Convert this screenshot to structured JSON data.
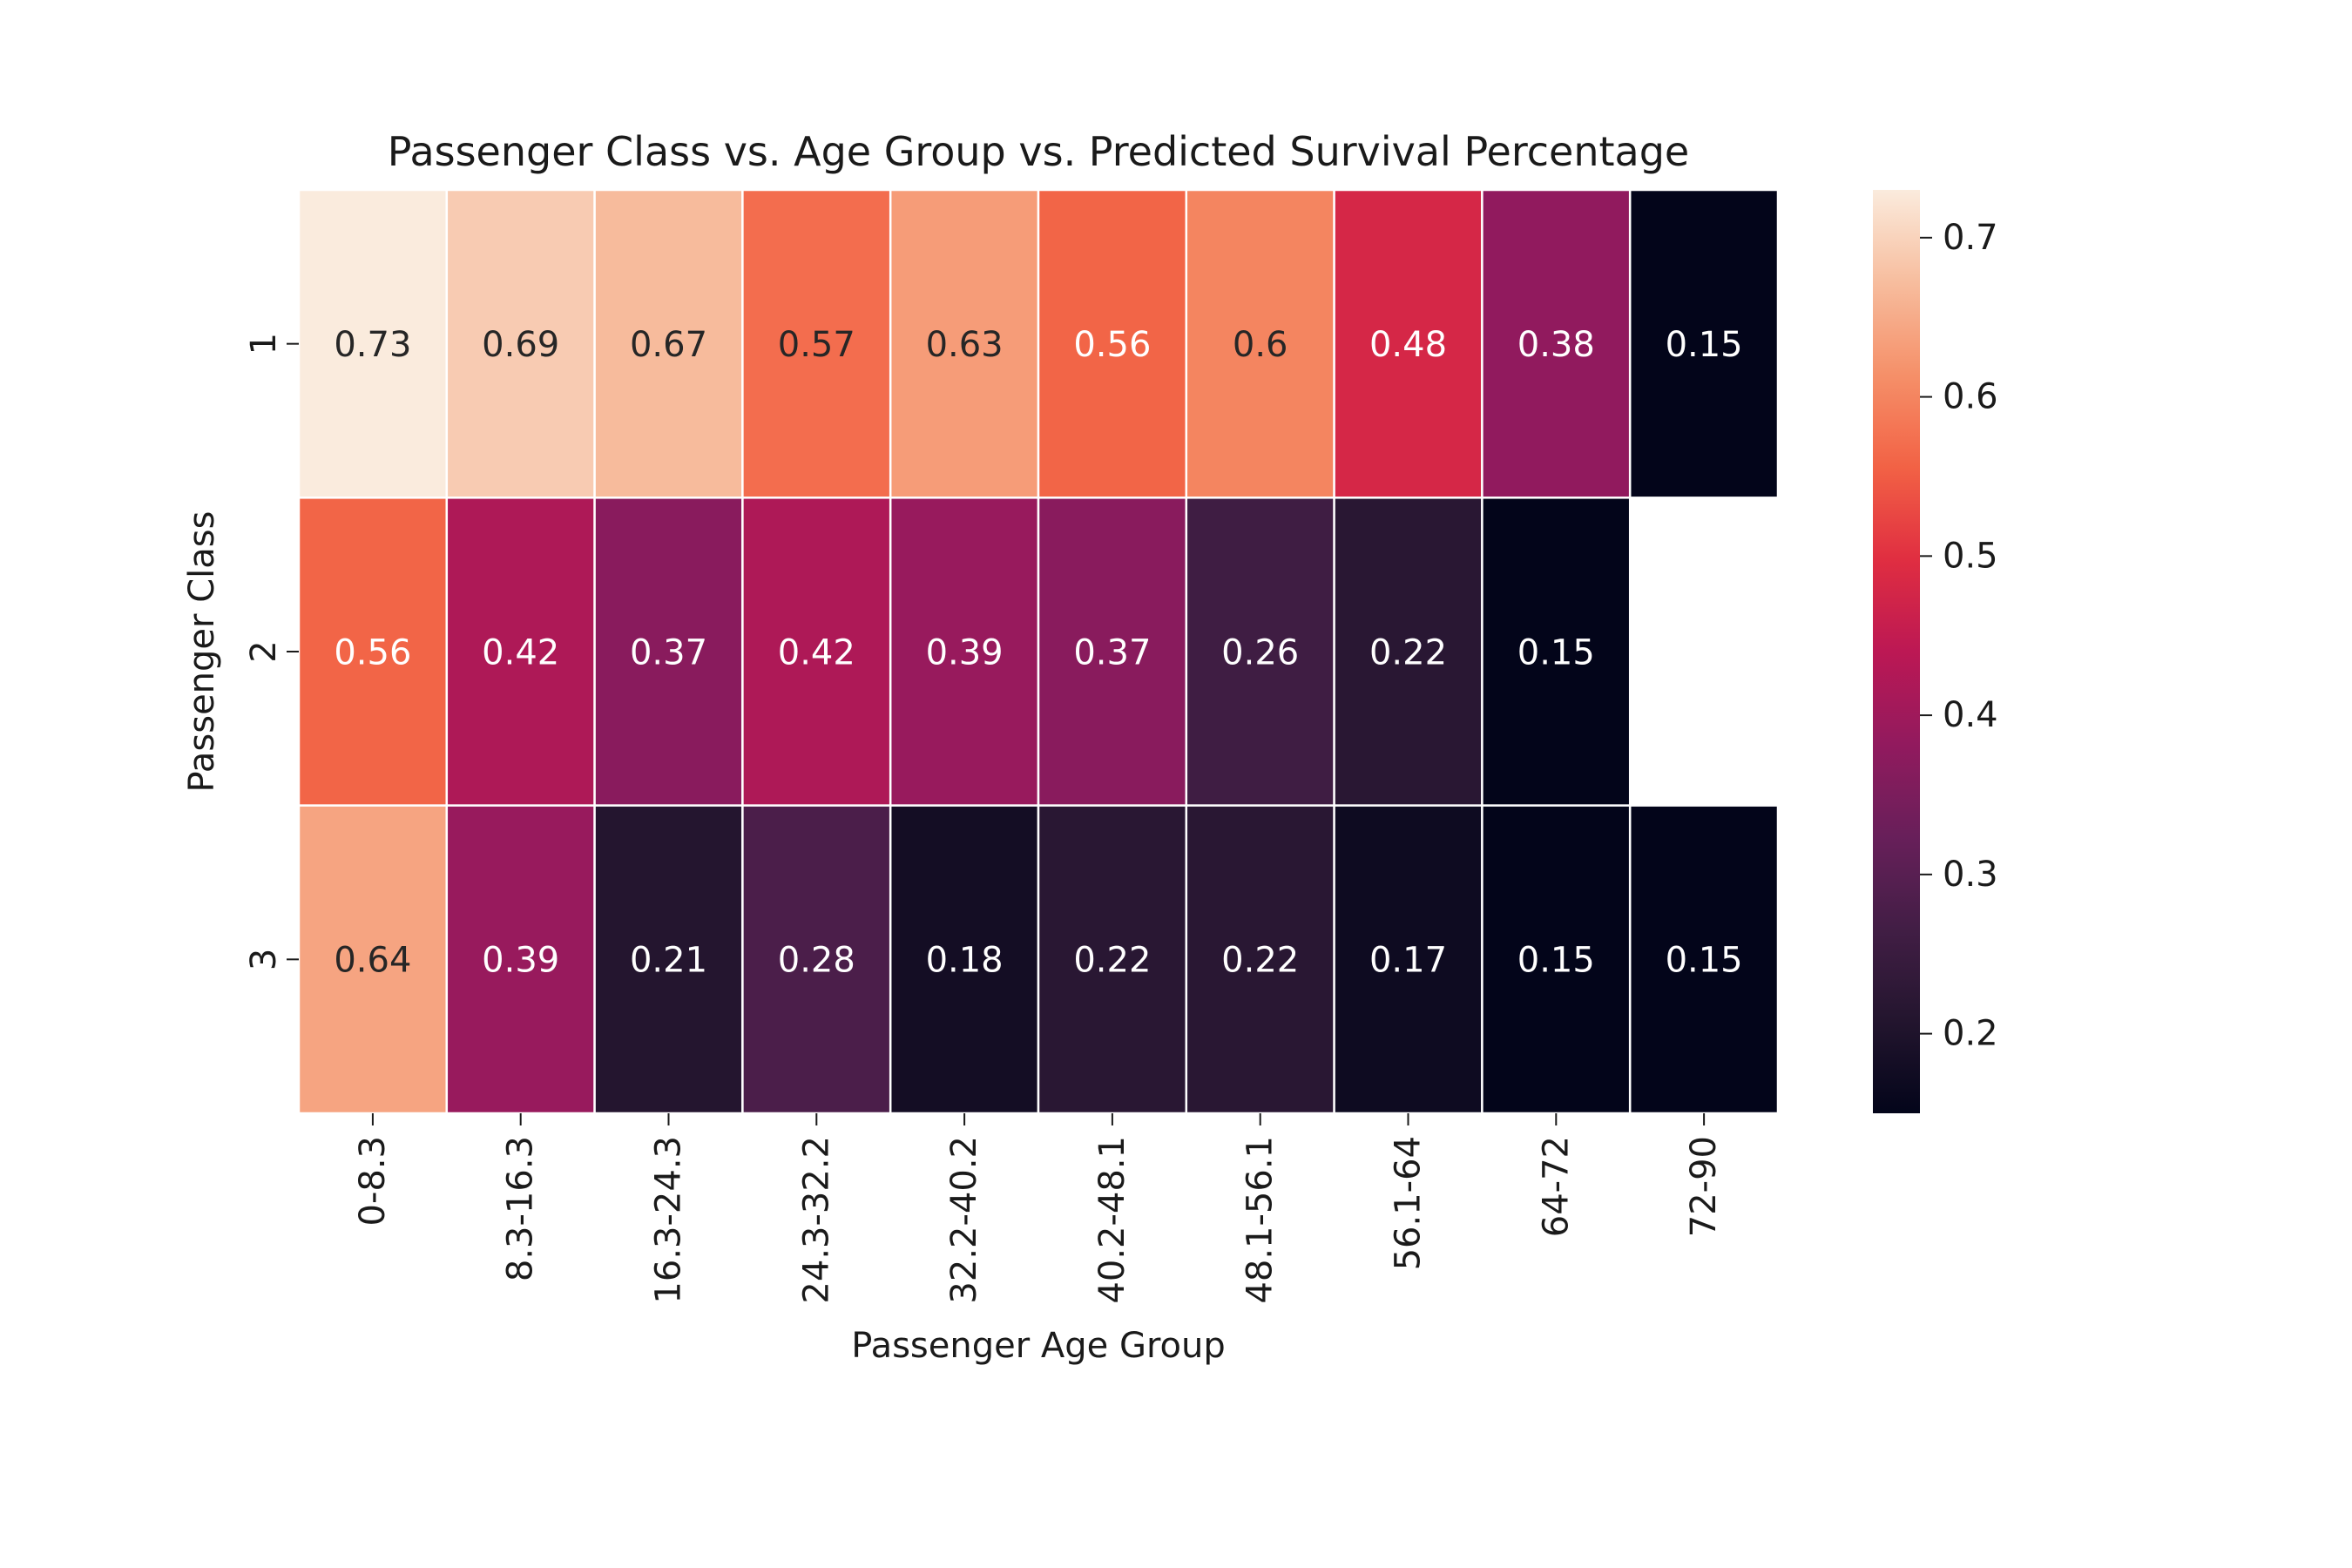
{
  "chart_data": {
    "type": "heatmap",
    "title": "Passenger Class vs. Age Group vs. Predicted Survival Percentage",
    "xlabel": "Passenger Age Group",
    "ylabel": "Passenger Class",
    "x_categories": [
      "0-8.3",
      "8.3-16.3",
      "16.3-24.3",
      "24.3-32.2",
      "32.2-40.2",
      "40.2-48.1",
      "48.1-56.1",
      "56.1-64",
      "64-72",
      "72-90"
    ],
    "y_categories": [
      "1",
      "2",
      "3"
    ],
    "values": [
      [
        0.73,
        0.69,
        0.67,
        0.57,
        0.63,
        0.56,
        0.6,
        0.48,
        0.38,
        0.15
      ],
      [
        0.56,
        0.42,
        0.37,
        0.42,
        0.39,
        0.37,
        0.26,
        0.22,
        0.15,
        null
      ],
      [
        0.64,
        0.39,
        0.21,
        0.28,
        0.18,
        0.22,
        0.22,
        0.17,
        0.15,
        0.15
      ]
    ],
    "value_labels": [
      [
        "0.73",
        "0.69",
        "0.67",
        "0.57",
        "0.63",
        "0.56",
        "0.6",
        "0.48",
        "0.38",
        "0.15"
      ],
      [
        "0.56",
        "0.42",
        "0.37",
        "0.42",
        "0.39",
        "0.37",
        "0.26",
        "0.22",
        "0.15",
        ""
      ],
      [
        "0.64",
        "0.39",
        "0.21",
        "0.28",
        "0.18",
        "0.22",
        "0.22",
        "0.17",
        "0.15",
        "0.15"
      ]
    ],
    "colorbar": {
      "vmin": 0.15,
      "vmax": 0.73,
      "ticks": [
        0.2,
        0.3,
        0.4,
        0.5,
        0.6,
        0.7
      ],
      "tick_labels": [
        "0.2",
        "0.3",
        "0.4",
        "0.5",
        "0.6",
        "0.7"
      ],
      "colormap": "rocket"
    },
    "grid": false,
    "cell_border_color": "#ffffff"
  }
}
